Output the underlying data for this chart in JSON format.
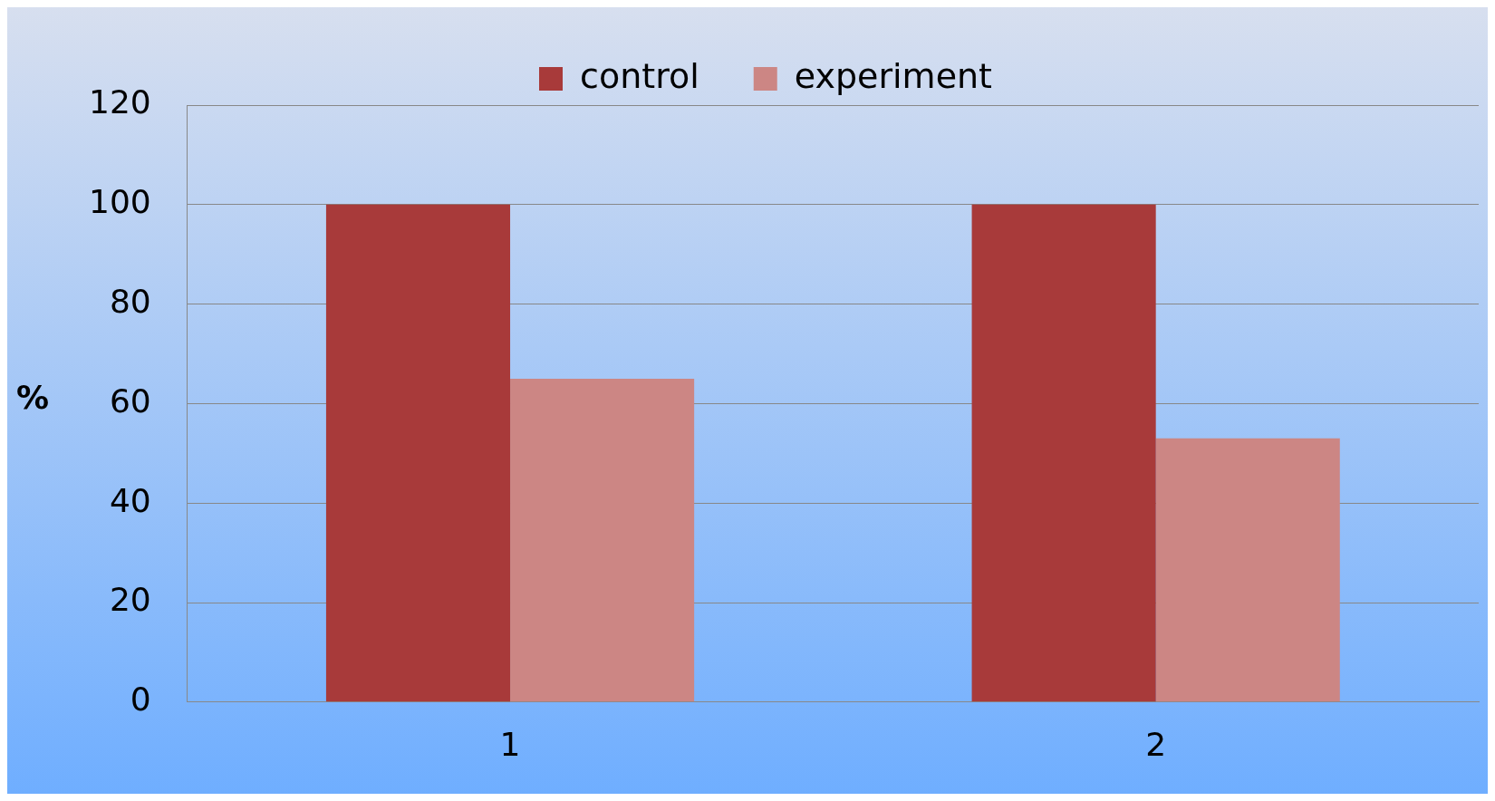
{
  "chart_data": {
    "type": "bar",
    "ylabel": "%",
    "categories": [
      "1",
      "2"
    ],
    "series": [
      {
        "name": "control",
        "color": "#a83a3a",
        "values": [
          100,
          100
        ]
      },
      {
        "name": "experiment",
        "color": "#cc8684",
        "values": [
          65,
          53
        ]
      }
    ],
    "ylim": [
      0,
      120
    ],
    "yticks": [
      0,
      20,
      40,
      60,
      80,
      100,
      120
    ],
    "grid": "y",
    "legend": "top"
  }
}
